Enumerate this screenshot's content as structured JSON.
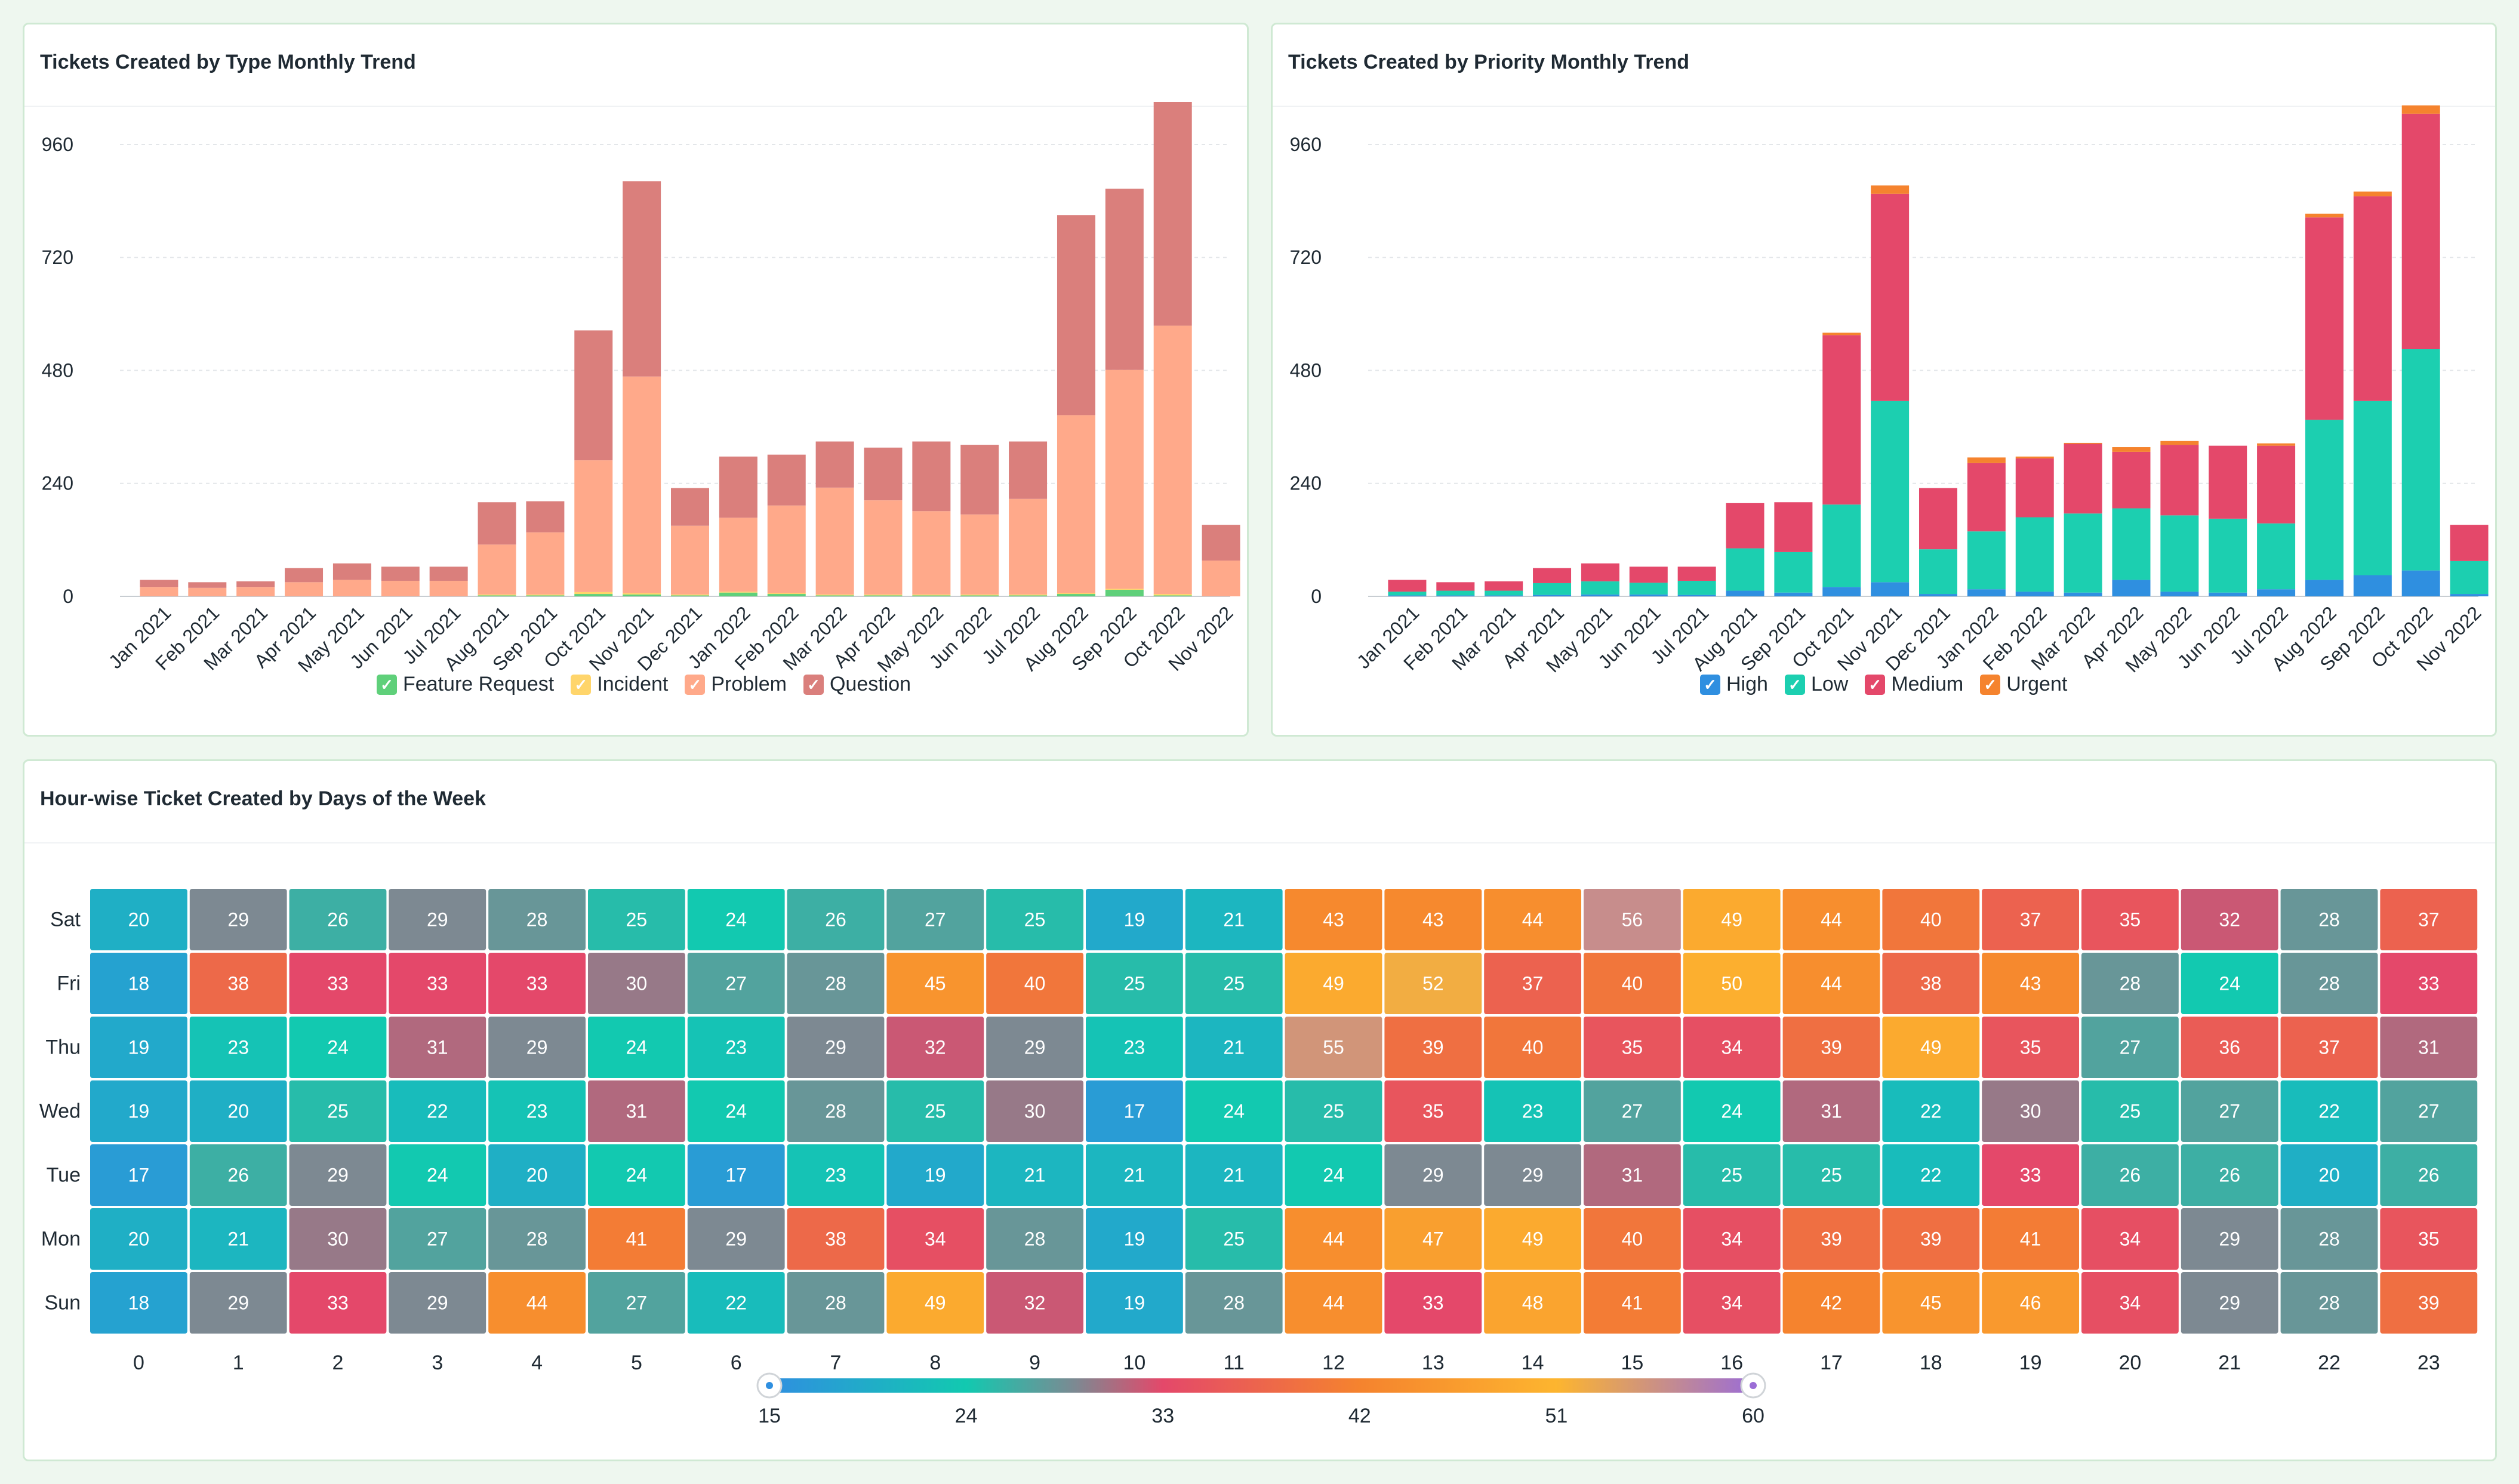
{
  "panels": {
    "type_trend": {
      "title": "Tickets Created by Type Monthly Trend"
    },
    "priority_trend": {
      "title": "Tickets Created by Priority Monthly Trend"
    },
    "heatmap": {
      "title": "Hour-wise Ticket Created by Days of the Week"
    }
  },
  "legend_type": [
    {
      "label": "Feature Request",
      "color": "#5fd07a"
    },
    {
      "label": "Incident",
      "color": "#ffd56b"
    },
    {
      "label": "Problem",
      "color": "#ffa98a"
    },
    {
      "label": "Question",
      "color": "#da7f7c"
    }
  ],
  "legend_priority": [
    {
      "label": "High",
      "color": "#2f8fe0"
    },
    {
      "label": "Low",
      "color": "#1ccfb0"
    },
    {
      "label": "Medium",
      "color": "#e4486a"
    },
    {
      "label": "Urgent",
      "color": "#f5832e"
    }
  ],
  "checkmark": "✓",
  "chart_data": [
    {
      "type": "bar",
      "stacked": true,
      "title": "Tickets Created by Type Monthly Trend",
      "categories": [
        "Jan 2021",
        "Feb 2021",
        "Mar 2021",
        "Apr 2021",
        "May 2021",
        "Jun 2021",
        "Jul 2021",
        "Aug 2021",
        "Sep 2021",
        "Oct 2021",
        "Nov 2021",
        "Dec 2021",
        "Jan 2022",
        "Feb 2022",
        "Mar 2022",
        "Apr 2022",
        "May 2022",
        "Jun 2022",
        "Jul 2022",
        "Aug 2022",
        "Sep 2022",
        "Oct 2022",
        "Nov 2022"
      ],
      "yticks": [
        0,
        240,
        480,
        720,
        960
      ],
      "ylim": [
        0,
        1050
      ],
      "grid": true,
      "legend_position": "bottom",
      "series": [
        {
          "name": "Feature Request",
          "color": "#5fd07a",
          "values": [
            0,
            0,
            0,
            0,
            0,
            0,
            0,
            2,
            2,
            5,
            4,
            2,
            8,
            5,
            2,
            2,
            2,
            2,
            2,
            5,
            14,
            2,
            0
          ]
        },
        {
          "name": "Incident",
          "color": "#ffd56b",
          "values": [
            0,
            0,
            0,
            0,
            0,
            0,
            0,
            2,
            2,
            4,
            3,
            2,
            2,
            2,
            2,
            2,
            2,
            2,
            2,
            2,
            2,
            3,
            0
          ]
        },
        {
          "name": "Problem",
          "color": "#ffa98a",
          "values": [
            20,
            18,
            20,
            30,
            35,
            33,
            33,
            106,
            132,
            280,
            460,
            146,
            157,
            186,
            227,
            200,
            177,
            170,
            203,
            378,
            465,
            570,
            76
          ]
        },
        {
          "name": "Question",
          "color": "#da7f7c",
          "values": [
            15,
            12,
            12,
            30,
            35,
            30,
            30,
            90,
            66,
            276,
            415,
            80,
            130,
            108,
            98,
            112,
            148,
            148,
            122,
            425,
            385,
            475,
            76
          ]
        }
      ]
    },
    {
      "type": "bar",
      "stacked": true,
      "title": "Tickets Created by Priority Monthly Trend",
      "categories": [
        "Jan 2021",
        "Feb 2021",
        "Mar 2021",
        "Apr 2021",
        "May 2021",
        "Jun 2021",
        "Jul 2021",
        "Aug 2021",
        "Sep 2021",
        "Oct 2021",
        "Nov 2021",
        "Dec 2021",
        "Jan 2022",
        "Feb 2022",
        "Mar 2022",
        "Apr 2022",
        "May 2022",
        "Jun 2022",
        "Jul 2022",
        "Aug 2022",
        "Sep 2022",
        "Oct 2022",
        "Nov 2022"
      ],
      "yticks": [
        0,
        240,
        480,
        720,
        960
      ],
      "ylim": [
        0,
        1050
      ],
      "grid": true,
      "legend_position": "bottom",
      "series": [
        {
          "name": "High",
          "color": "#2f8fe0",
          "values": [
            2,
            2,
            2,
            3,
            4,
            4,
            3,
            12,
            8,
            20,
            30,
            5,
            15,
            10,
            8,
            35,
            10,
            8,
            15,
            35,
            45,
            55,
            5
          ]
        },
        {
          "name": "Low",
          "color": "#1ccfb0",
          "values": [
            8,
            10,
            10,
            25,
            28,
            25,
            30,
            90,
            86,
            175,
            385,
            95,
            123,
            158,
            168,
            152,
            162,
            157,
            140,
            340,
            370,
            470,
            70
          ]
        },
        {
          "name": "Medium",
          "color": "#e4486a",
          "values": [
            25,
            18,
            20,
            32,
            38,
            34,
            30,
            96,
            106,
            360,
            440,
            130,
            145,
            125,
            148,
            120,
            150,
            155,
            165,
            430,
            435,
            500,
            77
          ]
        },
        {
          "name": "Urgent",
          "color": "#f5832e",
          "values": [
            0,
            0,
            0,
            0,
            0,
            0,
            0,
            0,
            0,
            5,
            18,
            0,
            12,
            4,
            2,
            10,
            8,
            0,
            5,
            8,
            10,
            18,
            0
          ]
        }
      ]
    },
    {
      "type": "heatmap",
      "title": "Hour-wise Ticket Created by Days of the Week",
      "x": [
        0,
        1,
        2,
        3,
        4,
        5,
        6,
        7,
        8,
        9,
        10,
        11,
        12,
        13,
        14,
        15,
        16,
        17,
        18,
        19,
        20,
        21,
        22,
        23
      ],
      "y": [
        "Sat",
        "Fri",
        "Thu",
        "Wed",
        "Tue",
        "Mon",
        "Sun"
      ],
      "values": [
        [
          20,
          29,
          26,
          29,
          28,
          25,
          24,
          26,
          27,
          25,
          19,
          21,
          43,
          43,
          44,
          56,
          49,
          44,
          40,
          37,
          35,
          32,
          28,
          37
        ],
        [
          18,
          38,
          33,
          33,
          33,
          30,
          27,
          28,
          45,
          40,
          25,
          25,
          49,
          52,
          37,
          40,
          50,
          44,
          38,
          43,
          28,
          24,
          28,
          33
        ],
        [
          19,
          23,
          24,
          31,
          29,
          24,
          23,
          29,
          32,
          29,
          23,
          21,
          55,
          39,
          40,
          35,
          34,
          39,
          49,
          35,
          27,
          36,
          37,
          31
        ],
        [
          19,
          20,
          25,
          22,
          23,
          31,
          24,
          28,
          25,
          30,
          17,
          24,
          25,
          35,
          23,
          27,
          24,
          31,
          22,
          30,
          25,
          27,
          22,
          27
        ],
        [
          17,
          26,
          29,
          24,
          20,
          24,
          17,
          23,
          19,
          21,
          21,
          21,
          24,
          29,
          29,
          31,
          25,
          25,
          22,
          33,
          26,
          26,
          20,
          26
        ],
        [
          20,
          21,
          30,
          27,
          28,
          41,
          29,
          38,
          34,
          28,
          19,
          25,
          44,
          47,
          49,
          40,
          34,
          39,
          39,
          41,
          34,
          29,
          28,
          35
        ],
        [
          18,
          29,
          33,
          29,
          44,
          27,
          22,
          28,
          49,
          32,
          19,
          28,
          44,
          33,
          48,
          41,
          34,
          42,
          45,
          46,
          34,
          29,
          28,
          39
        ]
      ],
      "color_scale": {
        "range": [
          15,
          60
        ],
        "tick_labels": [
          "15",
          "24",
          "33",
          "42",
          "51",
          "60"
        ],
        "stops": [
          {
            "at": 15,
            "color": "#2f8fe0"
          },
          {
            "at": 24,
            "color": "#12c9b0"
          },
          {
            "at": 29,
            "color": "#7d8992"
          },
          {
            "at": 33,
            "color": "#e4486a"
          },
          {
            "at": 42,
            "color": "#f5832e"
          },
          {
            "at": 51,
            "color": "#fdb52f"
          },
          {
            "at": 60,
            "color": "#9b6dd6"
          }
        ]
      }
    }
  ]
}
